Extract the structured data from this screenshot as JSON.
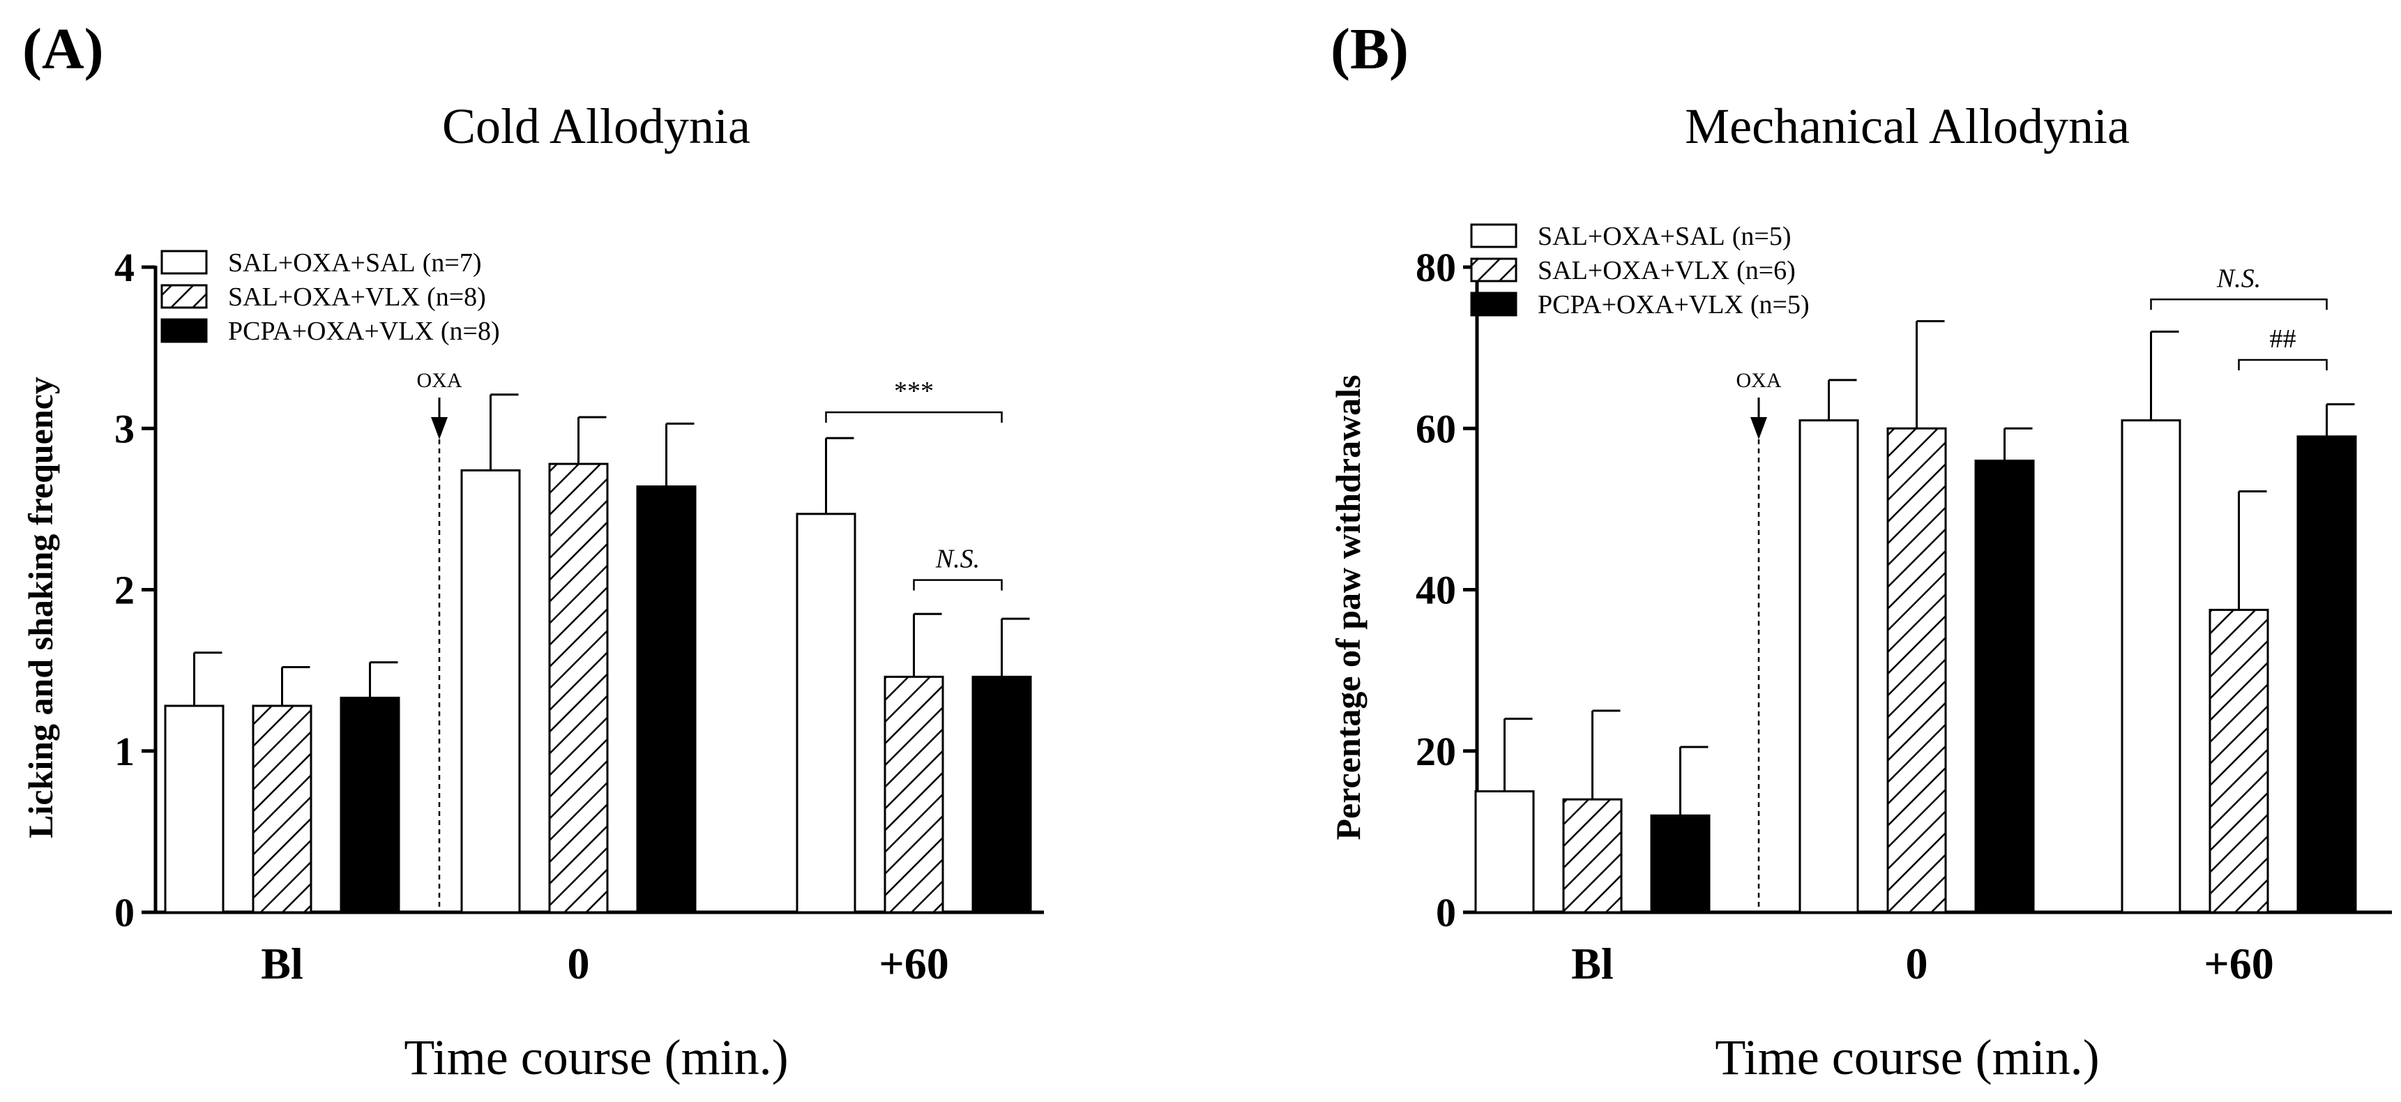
{
  "chart_data": [
    {
      "panel": "(A)",
      "type": "bar",
      "title": "Cold Allodynia",
      "xlabel": "Time course (min.)",
      "ylabel": "Licking and shaking frequency",
      "ylim": [
        0,
        4
      ],
      "yticks": [
        "0",
        "1",
        "2",
        "3",
        "4"
      ],
      "categories": [
        "Bl",
        "0",
        "+60"
      ],
      "series": [
        {
          "name": "SAL+OXA+SAL",
          "n_label": "(n=7)",
          "fill": "open",
          "values": [
            1.28,
            2.74,
            2.47
          ],
          "errors": [
            0.33,
            0.47,
            0.47
          ]
        },
        {
          "name": "SAL+OXA+VLX",
          "n_label": "(n=8)",
          "fill": "hatched",
          "values": [
            1.28,
            2.78,
            1.46
          ],
          "errors": [
            0.24,
            0.29,
            0.39
          ]
        },
        {
          "name": "PCPA+OXA+VLX",
          "n_label": "(n=8)",
          "fill": "solid",
          "values": [
            1.33,
            2.64,
            1.46
          ],
          "errors": [
            0.22,
            0.39,
            0.36
          ]
        }
      ],
      "marker": {
        "label": "OXA",
        "between": [
          "Bl",
          "0"
        ]
      },
      "annotations": [
        {
          "label": "***",
          "category": "+60",
          "from_series": 0,
          "to_series": 2,
          "y": 3.1,
          "italic": false
        },
        {
          "label": "N.S.",
          "category": "+60",
          "from_series": 1,
          "to_series": 2,
          "y": 2.06,
          "italic": true
        }
      ]
    },
    {
      "panel": "(B)",
      "type": "bar",
      "title": "Mechanical Allodynia",
      "xlabel": "Time course (min.)",
      "ylabel": "Percentage of paw withdrawals",
      "ylim": [
        0,
        80
      ],
      "yticks": [
        "0",
        "20",
        "40",
        "60",
        "80"
      ],
      "categories": [
        "Bl",
        "0",
        "+60"
      ],
      "series": [
        {
          "name": "SAL+OXA+SAL",
          "n_label": "(n=5)",
          "fill": "open",
          "values": [
            15,
            61,
            61
          ],
          "errors": [
            9,
            5,
            11
          ]
        },
        {
          "name": "SAL+OXA+VLX",
          "n_label": "(n=6)",
          "fill": "hatched",
          "values": [
            14,
            60,
            37.5
          ],
          "errors": [
            11,
            13.3,
            14.7
          ]
        },
        {
          "name": "PCPA+OXA+VLX",
          "n_label": "(n=5)",
          "fill": "solid",
          "values": [
            12,
            56,
            59
          ],
          "errors": [
            8.5,
            4,
            4
          ]
        }
      ],
      "marker": {
        "label": "OXA",
        "between": [
          "Bl",
          "0"
        ]
      },
      "annotations": [
        {
          "label": "N.S.",
          "category": "+60",
          "from_series": 0,
          "to_series": 2,
          "y": 76,
          "italic": true
        },
        {
          "label": "##",
          "category": "+60",
          "from_series": 1,
          "to_series": 2,
          "y": 68.5,
          "italic": false
        }
      ]
    }
  ]
}
